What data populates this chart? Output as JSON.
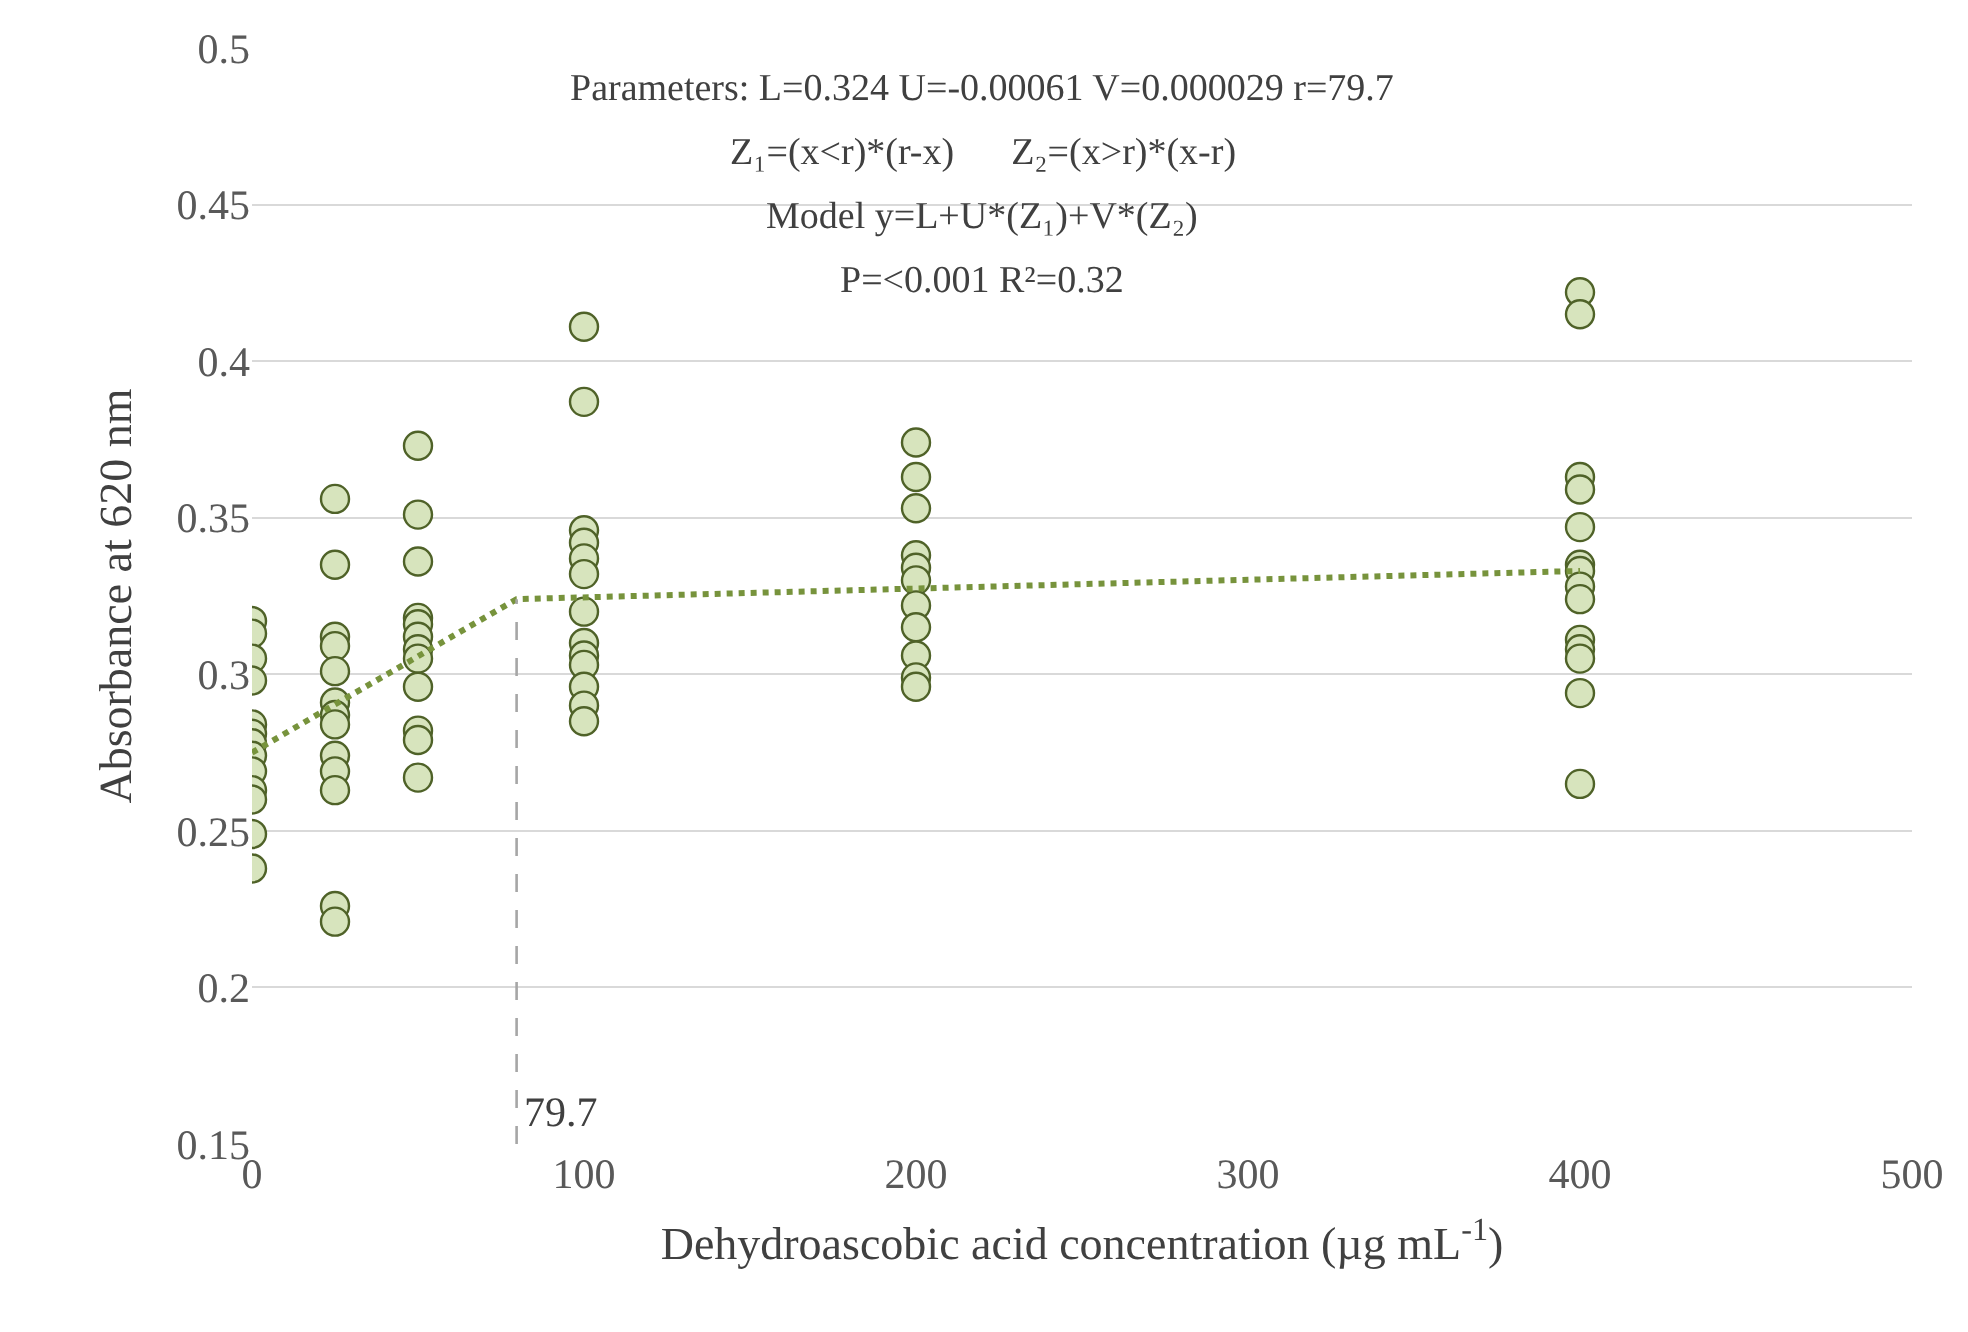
{
  "chart_data": {
    "type": "scatter",
    "xlabel": "Dehydroascobic acid concentration (µg mL$^{-1}$)",
    "ylabel": "Absorbance at 620 nm",
    "annotations": [
      "Parameters: L=0.324 U=-0.00061 V=0.000029 r=79.7",
      "Z₁=(x<r)*(r-x)      Z₂=(x>r)*(x-r)",
      "Model y=L+U*(Z₁)+V*(Z₂)",
      "P=<0.001 R²=0.32"
    ],
    "series": [
      {
        "color": "#d7e4bd",
        "x": [
          0,
          0,
          0,
          0,
          0,
          0,
          0,
          0,
          0,
          0,
          0,
          0,
          0,
          25,
          25,
          25,
          25,
          25,
          25,
          25,
          25,
          25,
          25,
          25,
          25,
          25,
          50,
          50,
          50,
          50,
          50,
          50,
          50,
          50,
          50,
          50,
          50,
          50,
          100,
          100,
          100,
          100,
          100,
          100,
          100,
          100,
          100,
          100,
          100,
          100,
          100,
          200,
          200,
          200,
          200,
          200,
          200,
          200,
          200,
          200,
          200,
          200,
          400,
          400,
          400,
          400,
          400,
          400,
          400,
          400,
          400,
          400,
          400,
          400,
          400,
          400
        ],
        "values": [
          0.317,
          0.313,
          0.305,
          0.298,
          0.284,
          0.281,
          0.278,
          0.274,
          0.269,
          0.263,
          0.26,
          0.249,
          0.238,
          0.356,
          0.335,
          0.312,
          0.309,
          0.301,
          0.291,
          0.287,
          0.284,
          0.274,
          0.269,
          0.263,
          0.226,
          0.221,
          0.373,
          0.351,
          0.336,
          0.318,
          0.316,
          0.312,
          0.308,
          0.305,
          0.296,
          0.282,
          0.279,
          0.267,
          0.411,
          0.387,
          0.346,
          0.342,
          0.337,
          0.332,
          0.32,
          0.31,
          0.306,
          0.303,
          0.296,
          0.29,
          0.285,
          0.374,
          0.363,
          0.353,
          0.338,
          0.334,
          0.33,
          0.322,
          0.315,
          0.306,
          0.299,
          0.296,
          0.422,
          0.415,
          0.363,
          0.359,
          0.347,
          0.335,
          0.333,
          0.328,
          0.324,
          0.311,
          0.308,
          0.305,
          0.294,
          0.265
        ]
      },
      {
        "type": "line",
        "color": "#77933c",
        "line_style": "dotted",
        "marker": "none",
        "x": [
          0,
          79.7,
          400
        ],
        "values": [
          0.275,
          0.324,
          0.333
        ]
      }
    ],
    "marker": "circle",
    "ref_lines": [
      {
        "axis": "x",
        "value": 79.7,
        "label": "79.7",
        "color": "#a6a6a6",
        "line_style": "dashed"
      }
    ],
    "xlim": [
      0,
      500
    ],
    "xticks": [
      0,
      100,
      200,
      300,
      400,
      500
    ],
    "ylim": [
      0.15,
      0.5
    ],
    "yticks": [
      0.15,
      0.2,
      0.25,
      0.3,
      0.35,
      0.4,
      0.45,
      0.5
    ],
    "grid": "y"
  }
}
